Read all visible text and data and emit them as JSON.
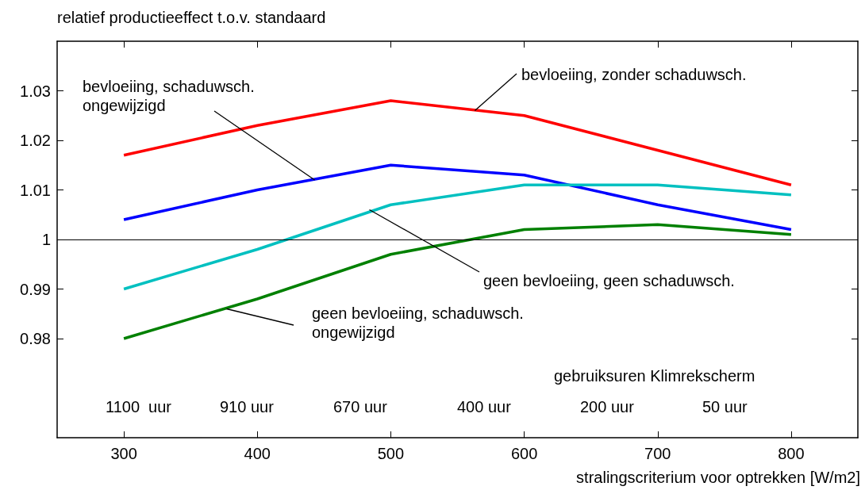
{
  "chart_data": {
    "type": "line",
    "ylabel": "relatief productieeffect t.o.v. standaard",
    "xlabel": "stralingscriterium voor optrekken [W/m2]",
    "x": [
      300,
      400,
      500,
      600,
      700,
      800
    ],
    "xlim": [
      250,
      850
    ],
    "xticks": [
      300,
      400,
      500,
      600,
      700,
      800
    ],
    "ylim": [
      0.96,
      1.04
    ],
    "yticks": [
      0.98,
      0.99,
      1,
      1.01,
      1.02,
      1.03
    ],
    "series": [
      {
        "color": "#ff0000",
        "values": [
          1.017,
          1.023,
          1.028,
          1.025,
          1.018,
          1.011
        ]
      },
      {
        "color": "#0000ff",
        "values": [
          1.004,
          1.01,
          1.015,
          1.013,
          1.007,
          1.002
        ]
      },
      {
        "color": "#00c0c0",
        "values": [
          0.99,
          0.998,
          1.007,
          1.011,
          1.011,
          1.009
        ]
      },
      {
        "color": "#008000",
        "values": [
          0.98,
          0.988,
          0.997,
          1.002,
          1.003,
          1.001
        ]
      }
    ],
    "ref_lines": [
      {
        "axis": "y",
        "value": 1,
        "color": "#000000"
      }
    ],
    "annotations": [
      {
        "text": "bevloeiing, zonder schaduwsch.",
        "x": 563,
        "y": 1.026
      },
      {
        "text": "bevloeiing, schaduwsch. ongewijzigd",
        "x": 443,
        "y": 1.012
      },
      {
        "text": "geen bevloeiing, geen schaduwsch.",
        "x": 484,
        "y": 1.006
      },
      {
        "text": "geen bevloeiing, schaduwsch. ongewijzigd",
        "x": 377,
        "y": 0.986
      },
      "gebruiksuren Klimrekscherm",
      "1100  uur",
      "910 uur",
      "670 uur",
      "400 uur",
      "200 uur",
      "50 uur"
    ]
  }
}
